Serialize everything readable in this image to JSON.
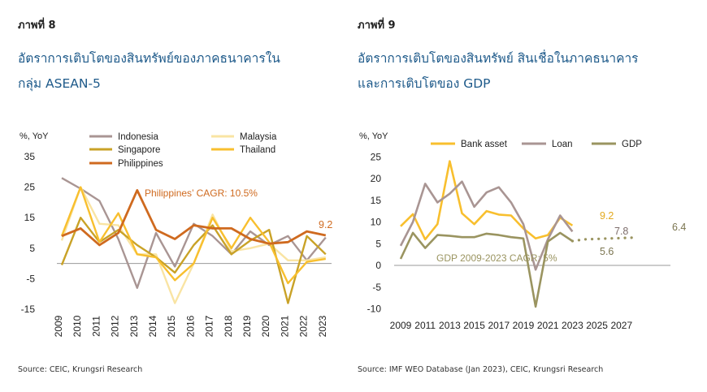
{
  "left": {
    "figure_label": "ภาพที่ 8",
    "title_line1": "อัตราการเติบโตของสินทรัพย์ของภาคธนาคารใน",
    "title_line2": "กลุ่ม ASEAN-5",
    "source": "Source: CEIC, Krungsri Research"
  },
  "right": {
    "figure_label": "ภาพที่ 9",
    "title_line1": "อัตราการเติบโตของสินทรัพย์ สินเชื่อในภาคธนาคาร",
    "title_line2": "และการเติบโตของ GDP",
    "source": "Source: IMF WEO Database (Jan 2023), CEIC, Krungsri Research"
  },
  "chart_data": [
    {
      "type": "line",
      "unit_label": "%, YoY",
      "x": [
        "2009",
        "2010",
        "2011",
        "2012",
        "2013",
        "2014",
        "2015",
        "2016",
        "2017",
        "2018",
        "2019",
        "2020",
        "2021",
        "2022",
        "2023"
      ],
      "ylim": [
        -15,
        35
      ],
      "yticks": [
        35,
        25,
        15,
        5,
        -5,
        -15
      ],
      "legend_position": "top",
      "series": [
        {
          "name": "Indonesia",
          "color": "#a99593",
          "values": [
            28,
            24.5,
            20.5,
            8,
            -8,
            10,
            -1,
            13,
            9,
            3,
            10.5,
            6,
            9,
            1,
            8.5
          ]
        },
        {
          "name": "Malaysia",
          "color": "#f9e4a3",
          "values": [
            7.5,
            25,
            13,
            12.5,
            3,
            3,
            -13,
            0,
            16,
            4,
            5,
            6.5,
            1,
            1,
            2
          ]
        },
        {
          "name": "Singapore",
          "color": "#c9a227",
          "values": [
            -0.5,
            15,
            7,
            11,
            6,
            2,
            -3,
            6,
            12.5,
            3,
            7.5,
            11,
            -13,
            9,
            3
          ]
        },
        {
          "name": "Thailand",
          "color": "#f8bf2e",
          "values": [
            9,
            25,
            7,
            16.5,
            3,
            2,
            -5.5,
            0,
            15,
            5,
            15,
            7,
            -6.5,
            0.5,
            1.5
          ]
        },
        {
          "name": "Philippines",
          "color": "#cf6a1f",
          "values": [
            9,
            11.5,
            6,
            10,
            24,
            11,
            8,
            12.5,
            11.5,
            11.5,
            8,
            6.5,
            7,
            10.5,
            9.2
          ]
        }
      ],
      "annotations": [
        {
          "text": "Philippines’ CAGR: 10.5%",
          "color": "#cf6a1f"
        },
        {
          "text": "9.2",
          "color": "#cf6a1f"
        }
      ]
    },
    {
      "type": "line",
      "unit_label": "%, YoY",
      "x_ticks": [
        "2009",
        "2011",
        "2013",
        "2015",
        "2017",
        "2019",
        "2021",
        "2023",
        "2025",
        "2027"
      ],
      "ylim": [
        -10,
        25
      ],
      "yticks": [
        25,
        20,
        15,
        10,
        5,
        0,
        -5,
        -10
      ],
      "legend_position": "top",
      "series": [
        {
          "name": "Bank asset",
          "color": "#f8bf2e",
          "x": [
            2009,
            2010,
            2011,
            2012,
            2013,
            2014,
            2015,
            2016,
            2017,
            2018,
            2019,
            2020,
            2021,
            2022,
            2023
          ],
          "values": [
            9,
            11.8,
            6,
            9.5,
            24,
            12,
            9.5,
            12.5,
            11.7,
            11.5,
            8.5,
            6.2,
            7,
            11,
            9.2
          ]
        },
        {
          "name": "Loan",
          "color": "#a99593",
          "x": [
            2009,
            2010,
            2011,
            2012,
            2013,
            2014,
            2015,
            2016,
            2017,
            2018,
            2019,
            2020,
            2021,
            2022,
            2023
          ],
          "values": [
            4.5,
            10,
            18.8,
            14.5,
            16.5,
            19.3,
            13.5,
            16.8,
            18,
            14.5,
            9.5,
            -1,
            6,
            11.5,
            7.8
          ]
        },
        {
          "name": "GDP",
          "color": "#9a9460",
          "x": [
            2009,
            2010,
            2011,
            2012,
            2013,
            2014,
            2015,
            2016,
            2017,
            2018,
            2019,
            2020,
            2021,
            2022,
            2023
          ],
          "values": [
            1.5,
            7.5,
            4,
            7,
            6.8,
            6.5,
            6.5,
            7.3,
            7,
            6.5,
            6.2,
            -9.5,
            5.5,
            7.5,
            5.6
          ]
        },
        {
          "name": "GDP forecast",
          "color": "#9a9460",
          "dotted": true,
          "x": [
            2023,
            2024,
            2025,
            2026,
            2027,
            2028
          ],
          "values": [
            5.6,
            6,
            6.1,
            6.2,
            6.3,
            6.4
          ]
        }
      ],
      "annotations": [
        {
          "text": "GDP 2009-2023 CAGR: 5%",
          "color": "#9a9460"
        },
        {
          "text": "9.2",
          "color": "#e3a91c"
        },
        {
          "text": "7.8",
          "color": "#7d6d6b"
        },
        {
          "text": "5.6",
          "color": "#7b7550"
        },
        {
          "text": "6.4",
          "color": "#7b7550"
        }
      ]
    }
  ]
}
